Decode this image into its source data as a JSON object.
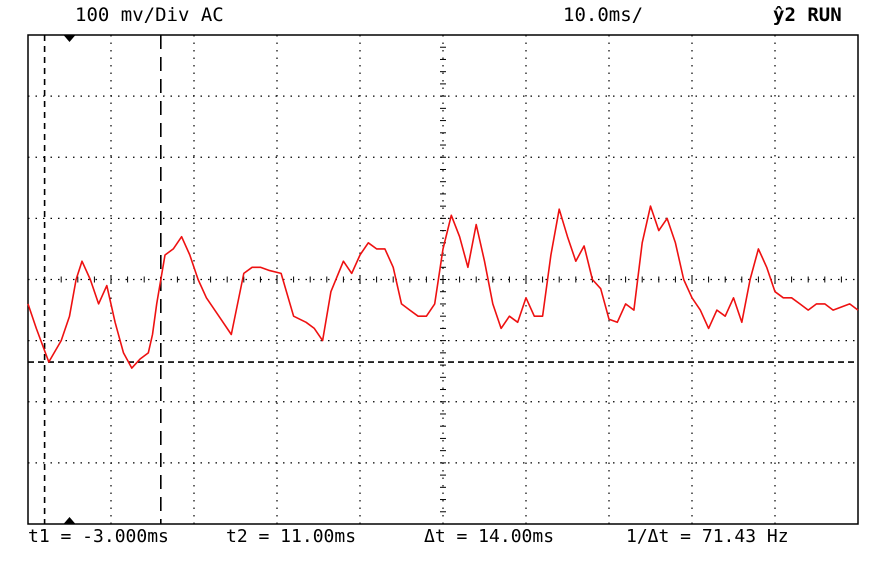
{
  "header": {
    "volts_per_div": "100 mv/Div AC",
    "time_per_div": "10.0ms/",
    "trigger": "ŷ2 RUN"
  },
  "measurements": {
    "t1": "t1 = -3.000ms",
    "t2": "t2 = 11.00ms",
    "delta_t": "Δt = 14.00ms",
    "inv_delta_t": "1/Δt = 71.43 Hz"
  },
  "colors": {
    "trace": "#ee1111",
    "grid": "#000000",
    "background": "#ffffff"
  },
  "chart_data": {
    "type": "line",
    "title": "",
    "xlabel": "",
    "ylabel": "",
    "x_unit": "ms",
    "y_unit": "mV",
    "xlim": [
      -5,
      95
    ],
    "ylim": [
      -400,
      400
    ],
    "grid": true,
    "cursors": {
      "t1": -3.0,
      "t2": 11.0,
      "reference_level": -135
    },
    "series": [
      {
        "x": [
          -5,
          -4,
          -2.5,
          -1,
          0,
          0.8,
          1.5,
          2.5,
          3.5,
          4.5,
          5.5,
          6.5,
          7.5,
          8.5,
          9.5,
          10,
          10.5,
          11.5,
          12.5,
          13.5,
          14.5,
          15.5,
          16.5,
          18,
          19.5,
          21,
          22,
          23,
          24,
          25.5,
          27,
          28.5,
          29.5,
          30.5,
          31.5,
          33,
          34,
          35,
          36,
          37,
          38,
          39,
          40,
          41,
          42,
          43,
          44,
          45,
          46,
          47,
          48,
          49,
          50,
          51,
          52,
          53,
          54,
          55,
          56,
          57,
          58,
          59,
          60,
          61,
          62,
          63,
          64,
          65,
          66,
          67,
          68,
          69,
          70,
          71,
          72,
          73,
          74,
          75,
          76,
          77,
          78,
          79,
          80,
          81,
          82,
          83,
          84,
          85,
          86,
          87,
          88,
          89,
          90,
          91,
          92,
          93,
          94,
          95
        ],
        "y": [
          -40,
          -80,
          -135,
          -100,
          -60,
          0,
          30,
          0,
          -40,
          -10,
          -70,
          -120,
          -145,
          -130,
          -120,
          -90,
          -40,
          40,
          50,
          70,
          40,
          0,
          -30,
          -60,
          -90,
          10,
          20,
          20,
          15,
          10,
          -60,
          -70,
          -80,
          -100,
          -20,
          30,
          10,
          40,
          60,
          50,
          50,
          20,
          -40,
          -50,
          -60,
          -60,
          -40,
          50,
          105,
          70,
          20,
          90,
          30,
          -40,
          -80,
          -60,
          -70,
          -30,
          -60,
          -60,
          40,
          115,
          70,
          30,
          55,
          0,
          -15,
          -65,
          -70,
          -40,
          -50,
          60,
          120,
          80,
          100,
          60,
          0,
          -30,
          -50,
          -80,
          -50,
          -60,
          -30,
          -70,
          0,
          50,
          20,
          -20,
          -30,
          -30,
          -40,
          -50,
          -40,
          -40,
          -50,
          -45,
          -40,
          -50
        ]
      }
    ]
  }
}
